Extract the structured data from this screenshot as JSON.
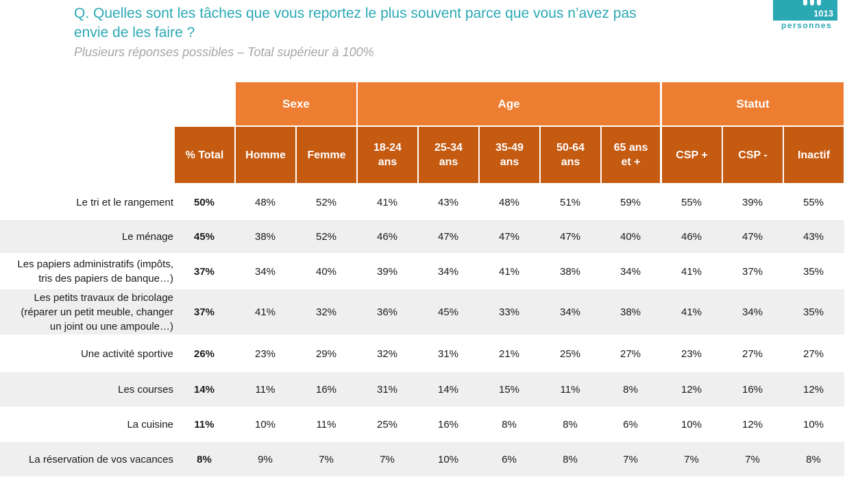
{
  "question": {
    "line1": "Q. Quelles sont les tâches que vous reportez le plus souvent parce que vous n’avez pas",
    "line2": "envie de les faire ?",
    "subtitle": "Plusieurs réponses possibles – Total supérieur à 100%"
  },
  "badge": {
    "count": "1013",
    "label": "personnes"
  },
  "colors": {
    "group_header": "#ed7d31",
    "column_header": "#c55a11",
    "title": "#2aa8b4",
    "band": "#efefef"
  },
  "groups": {
    "sexe": "Sexe",
    "age": "Age",
    "statut": "Statut"
  },
  "columns": {
    "total": "% Total",
    "homme": "Homme",
    "femme": "Femme",
    "a1824": "18-24\nans",
    "a2534": "25-34\nans",
    "a3549": "35-49\nans",
    "a5064": "50-64\nans",
    "a65": "65 ans\net +",
    "cspp": "CSP +",
    "cspm": "CSP -",
    "inactif": "Inactif"
  },
  "rows": [
    {
      "label": "Le tri et le rangement",
      "values": [
        "50%",
        "48%",
        "52%",
        "41%",
        "43%",
        "48%",
        "51%",
        "59%",
        "55%",
        "39%",
        "55%"
      ]
    },
    {
      "label": "Le ménage",
      "values": [
        "45%",
        "38%",
        "52%",
        "46%",
        "47%",
        "47%",
        "47%",
        "40%",
        "46%",
        "47%",
        "43%"
      ]
    },
    {
      "label": "Les papiers administratifs (impôts,\ntris des papiers de banque…)",
      "values": [
        "37%",
        "34%",
        "40%",
        "39%",
        "34%",
        "41%",
        "38%",
        "34%",
        "41%",
        "37%",
        "35%"
      ]
    },
    {
      "label": "Les petits travaux de bricolage\n(réparer un petit meuble, changer\nun joint ou une ampoule…)",
      "values": [
        "37%",
        "41%",
        "32%",
        "36%",
        "45%",
        "33%",
        "34%",
        "38%",
        "41%",
        "34%",
        "35%"
      ]
    },
    {
      "label": "Une activité sportive",
      "values": [
        "26%",
        "23%",
        "29%",
        "32%",
        "31%",
        "21%",
        "25%",
        "27%",
        "23%",
        "27%",
        "27%"
      ]
    },
    {
      "label": "Les courses",
      "values": [
        "14%",
        "11%",
        "16%",
        "31%",
        "14%",
        "15%",
        "11%",
        "8%",
        "12%",
        "16%",
        "12%"
      ]
    },
    {
      "label": "La cuisine",
      "values": [
        "11%",
        "10%",
        "11%",
        "25%",
        "16%",
        "8%",
        "8%",
        "6%",
        "10%",
        "12%",
        "10%"
      ]
    },
    {
      "label": "La réservation de vos vacances",
      "values": [
        "8%",
        "9%",
        "7%",
        "7%",
        "10%",
        "6%",
        "8%",
        "7%",
        "7%",
        "7%",
        "8%"
      ]
    }
  ]
}
